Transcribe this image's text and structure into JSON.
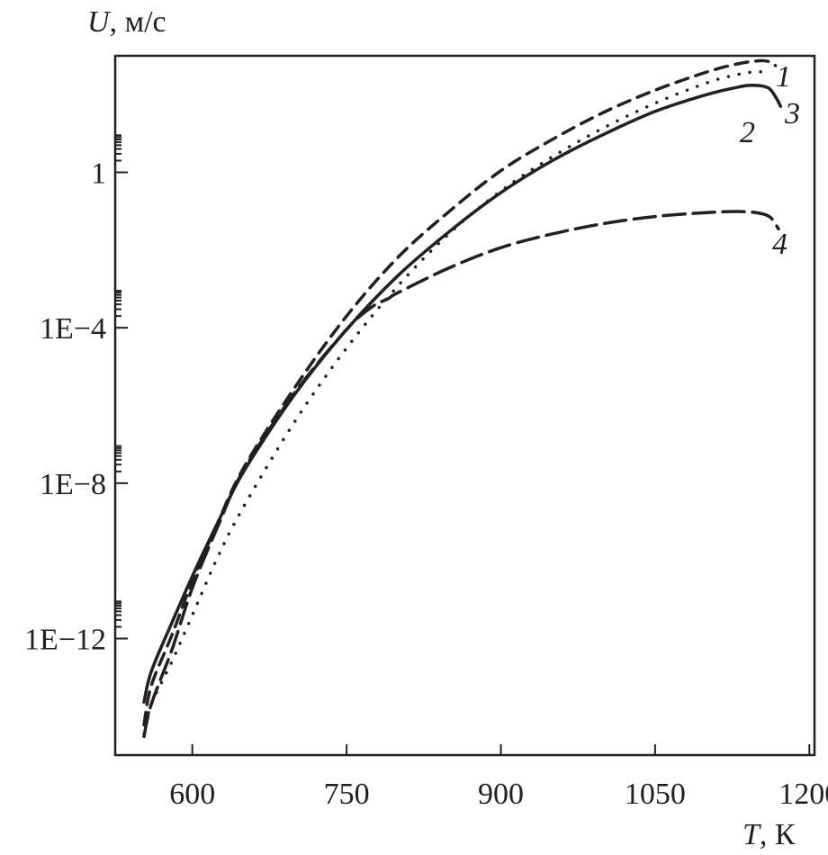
{
  "chart_data": {
    "type": "line",
    "title": "",
    "xlabel": {
      "var": "T",
      "unit": ", К"
    },
    "ylabel": {
      "var": "U",
      "unit": ", м/с"
    },
    "xscale": "linear",
    "yscale": "log",
    "xlim": [
      525,
      1205
    ],
    "ylim": [
      1e-15,
      1000.0
    ],
    "x_ticks": [
      {
        "value": 600,
        "label": "600"
      },
      {
        "value": 750,
        "label": "750"
      },
      {
        "value": 900,
        "label": "900"
      },
      {
        "value": 1050,
        "label": "1050"
      },
      {
        "value": 1200,
        "label": "1200"
      }
    ],
    "y_ticks": [
      {
        "value": 1,
        "label": "1"
      },
      {
        "value": 0.0001,
        "label": "1E−4"
      },
      {
        "value": 1e-08,
        "label": "1E−8"
      },
      {
        "value": 1e-12,
        "label": "1E−12"
      }
    ],
    "grid": false,
    "legend": "none",
    "series": [
      {
        "label": "1",
        "style": "dashed",
        "points": [
          [
            553,
            6e-15
          ],
          [
            560,
            6e-14
          ],
          [
            580,
            1.2e-12
          ],
          [
            600,
            3e-11
          ],
          [
            625,
            1e-09
          ],
          [
            650,
            2.5e-08
          ],
          [
            700,
            3e-06
          ],
          [
            750,
            0.0002
          ],
          [
            800,
            0.0065
          ],
          [
            850,
            0.1
          ],
          [
            900,
            1.1
          ],
          [
            950,
            7
          ],
          [
            1000,
            35
          ],
          [
            1050,
            130
          ],
          [
            1100,
            380
          ],
          [
            1130,
            620
          ],
          [
            1150,
            740
          ],
          [
            1160,
            720
          ],
          [
            1167,
            560
          ]
        ]
      },
      {
        "label": "2",
        "style": "solid",
        "points": [
          [
            553,
            2.3e-14
          ],
          [
            560,
            1.4e-13
          ],
          [
            580,
            2.5e-12
          ],
          [
            600,
            4e-11
          ],
          [
            625,
            1e-09
          ],
          [
            650,
            2e-08
          ],
          [
            700,
            2e-06
          ],
          [
            750,
            9e-05
          ],
          [
            800,
            0.0022
          ],
          [
            850,
            0.03
          ],
          [
            900,
            0.3
          ],
          [
            950,
            2
          ],
          [
            1000,
            9.5
          ],
          [
            1050,
            37
          ],
          [
            1100,
            100
          ],
          [
            1130,
            155
          ],
          [
            1145,
            175
          ],
          [
            1160,
            150
          ],
          [
            1168,
            80
          ],
          [
            1172,
            50
          ]
        ]
      },
      {
        "label": "3",
        "style": "dotted",
        "points": [
          [
            553,
            3.5e-15
          ],
          [
            560,
            2e-14
          ],
          [
            580,
            2.5e-13
          ],
          [
            600,
            4e-12
          ],
          [
            625,
            1.3e-10
          ],
          [
            650,
            2.5e-09
          ],
          [
            700,
            4e-07
          ],
          [
            750,
            3e-05
          ],
          [
            800,
            0.0012
          ],
          [
            850,
            0.027
          ],
          [
            900,
            0.33
          ],
          [
            950,
            2.5
          ],
          [
            1000,
            14
          ],
          [
            1050,
            60
          ],
          [
            1100,
            200
          ],
          [
            1130,
            330
          ],
          [
            1150,
            390
          ],
          [
            1158,
            350
          ]
        ]
      },
      {
        "label": "4",
        "style": "long-dashed",
        "points": [
          [
            553,
            3e-15
          ],
          [
            560,
            2e-14
          ],
          [
            580,
            5e-13
          ],
          [
            600,
            2e-11
          ],
          [
            625,
            8e-10
          ],
          [
            650,
            2.2e-08
          ],
          [
            700,
            2.2e-06
          ],
          [
            750,
            9e-05
          ],
          [
            775,
            0.00035
          ],
          [
            790,
            0.00055
          ],
          [
            800,
            0.0008
          ],
          [
            850,
            0.0035
          ],
          [
            900,
            0.0115
          ],
          [
            950,
            0.026
          ],
          [
            1000,
            0.048
          ],
          [
            1050,
            0.073
          ],
          [
            1100,
            0.092
          ],
          [
            1130,
            0.098
          ],
          [
            1150,
            0.09
          ],
          [
            1162,
            0.07
          ],
          [
            1170,
            0.035
          ]
        ]
      }
    ]
  }
}
